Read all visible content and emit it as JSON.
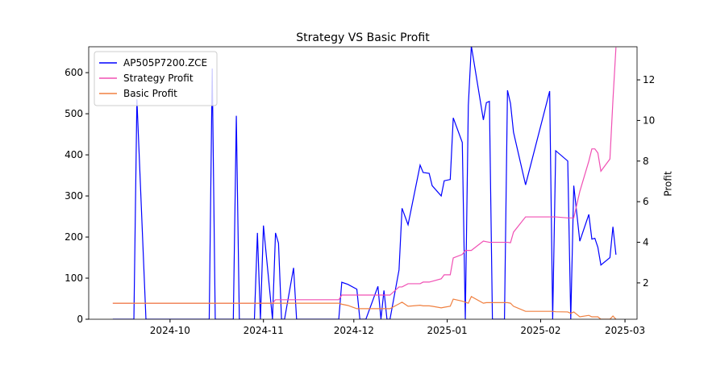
{
  "chart_data": {
    "type": "line",
    "title": "Strategy VS Basic Profit",
    "y2label": "Profit",
    "x": [
      "2024-09-12",
      "2024-09-19",
      "2024-09-20",
      "2024-09-23",
      "2024-10-14",
      "2024-10-15",
      "2024-10-16",
      "2024-10-22",
      "2024-10-23",
      "2024-10-24",
      "2024-10-29",
      "2024-10-30",
      "2024-10-31",
      "2024-11-01",
      "2024-11-04",
      "2024-11-05",
      "2024-11-06",
      "2024-11-07",
      "2024-11-08",
      "2024-11-11",
      "2024-11-12",
      "2024-11-26",
      "2024-11-27",
      "2024-11-29",
      "2024-12-02",
      "2024-12-03",
      "2024-12-05",
      "2024-12-09",
      "2024-12-10",
      "2024-12-11",
      "2024-12-12",
      "2024-12-13",
      "2024-12-16",
      "2024-12-17",
      "2024-12-19",
      "2024-12-23",
      "2024-12-24",
      "2024-12-26",
      "2024-12-27",
      "2024-12-30",
      "2024-12-31",
      "2025-01-02",
      "2025-01-03",
      "2025-01-06",
      "2025-01-07",
      "2025-01-08",
      "2025-01-09",
      "2025-01-13",
      "2025-01-14",
      "2025-01-15",
      "2025-01-16",
      "2025-01-20",
      "2025-01-21",
      "2025-01-22",
      "2025-01-23",
      "2025-01-27",
      "2025-02-04",
      "2025-02-05",
      "2025-02-06",
      "2025-02-10",
      "2025-02-11",
      "2025-02-12",
      "2025-02-14",
      "2025-02-17",
      "2025-02-18",
      "2025-02-19",
      "2025-02-20",
      "2025-02-21",
      "2025-02-24",
      "2025-02-25",
      "2025-02-26"
    ],
    "series": [
      {
        "name": "AP505P7200.ZCE",
        "color": "#0000ff",
        "values": [
          0,
          0,
          535,
          0,
          0,
          610,
          0,
          0,
          495,
          0,
          0,
          210,
          0,
          228,
          0,
          210,
          185,
          0,
          0,
          125,
          0,
          0,
          90,
          85,
          73,
          0,
          0,
          80,
          0,
          70,
          0,
          0,
          120,
          270,
          230,
          375,
          357,
          355,
          325,
          300,
          337,
          340,
          490,
          430,
          0,
          520,
          665,
          485,
          527,
          530,
          0,
          0,
          557,
          525,
          455,
          327,
          555,
          0,
          410,
          385,
          0,
          325,
          190,
          255,
          195,
          197,
          175,
          132,
          150,
          225,
          157
        ]
      },
      {
        "name": "Strategy Profit",
        "color": "#f050b4",
        "axis": "y2",
        "values": [
          1.0,
          1.0,
          1.0,
          1.0,
          1.0,
          1.0,
          1.0,
          1.0,
          1.0,
          1.0,
          1.0,
          1.0,
          1.0,
          1.0,
          1.0,
          1.17,
          1.17,
          1.17,
          1.17,
          1.17,
          1.17,
          1.17,
          1.4,
          1.4,
          1.4,
          1.4,
          1.4,
          1.4,
          1.4,
          1.4,
          1.4,
          1.4,
          1.8,
          1.8,
          1.96,
          1.96,
          2.04,
          2.04,
          2.08,
          2.2,
          2.4,
          2.4,
          3.23,
          3.4,
          3.6,
          3.6,
          3.6,
          4.06,
          4.03,
          4.0,
          4.0,
          4.0,
          4.0,
          3.98,
          4.5,
          5.25,
          5.25,
          5.25,
          5.25,
          5.2,
          5.2,
          5.2,
          6.5,
          8.0,
          8.6,
          8.6,
          8.4,
          7.5,
          8.1,
          11,
          13.6
        ]
      },
      {
        "name": "Basic Profit",
        "color": "#f08040",
        "axis": "y2",
        "values": [
          1.0,
          1.0,
          1.0,
          1.0,
          1.0,
          1.0,
          1.0,
          1.0,
          1.0,
          1.0,
          1.0,
          1.0,
          1.0,
          1.0,
          1.0,
          1.0,
          1.0,
          1.0,
          1.0,
          1.0,
          1.0,
          1.0,
          0.95,
          0.89,
          0.73,
          0.73,
          0.73,
          0.73,
          0.73,
          0.73,
          0.73,
          0.73,
          0.97,
          1.05,
          0.85,
          0.9,
          0.87,
          0.87,
          0.85,
          0.77,
          0.8,
          0.85,
          1.2,
          1.1,
          1.05,
          1.0,
          1.33,
          1.0,
          1.03,
          1.03,
          1.03,
          1.03,
          1.03,
          1.0,
          0.85,
          0.6,
          0.6,
          0.6,
          0.58,
          0.57,
          0.5,
          0.57,
          0.33,
          0.4,
          0.33,
          0.33,
          0.33,
          0.21,
          0.21,
          0.37,
          0.21
        ]
      }
    ],
    "xlim": [
      "2024-09-04",
      "2025-03-05"
    ],
    "xticks": [
      {
        "value": "2024-10-01",
        "label": "2024-10"
      },
      {
        "value": "2024-11-01",
        "label": "2024-11"
      },
      {
        "value": "2024-12-01",
        "label": "2024-12"
      },
      {
        "value": "2025-01-01",
        "label": "2025-01"
      },
      {
        "value": "2025-02-01",
        "label": "2025-02"
      },
      {
        "value": "2025-03-01",
        "label": "2025-03"
      }
    ],
    "ylim": [
      0,
      663
    ],
    "yticks": [
      0,
      100,
      200,
      300,
      400,
      500,
      600
    ],
    "y2lim": [
      0.21,
      13.63
    ],
    "y2ticks": [
      2,
      4,
      6,
      8,
      10,
      12
    ],
    "legend": "upper left"
  }
}
